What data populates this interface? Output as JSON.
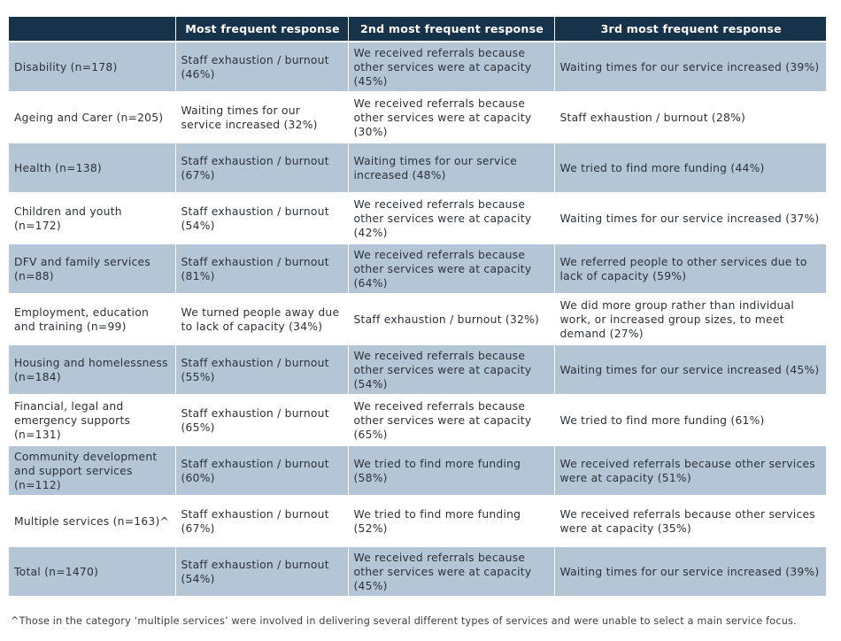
{
  "table": {
    "headers": [
      "",
      "Most frequent response",
      "2nd most frequent response",
      "3rd most frequent response"
    ],
    "rows": [
      [
        "Disability (n=178)",
        "Staff exhaustion / burnout (46%)",
        "We received referrals because other services were at capacity (45%)",
        "Waiting times for our service increased (39%)"
      ],
      [
        "Ageing and Carer (n=205)",
        "Waiting times for our service increased (32%)",
        "We received referrals because other services were at capacity (30%)",
        "Staff exhaustion / burnout (28%)"
      ],
      [
        "Health (n=138)",
        "Staff exhaustion / burnout (67%)",
        "Waiting times for our service increased (48%)",
        "We tried to find more funding (44%)"
      ],
      [
        "Children and youth (n=172)",
        "Staff exhaustion / burnout (54%)",
        "We received referrals because other services were at capacity (42%)",
        "Waiting times for our service increased (37%)"
      ],
      [
        "DFV and family services (n=88)",
        "Staff exhaustion / burnout (81%)",
        "We received referrals because other services were at capacity (64%)",
        "We referred people to other services due to lack of capacity (59%)"
      ],
      [
        "Employment, education and training (n=99)",
        "We turned people away due to lack of capacity (34%)",
        "Staff exhaustion / burnout (32%)",
        "We did more group rather than individual work, or increased group sizes, to meet demand (27%)"
      ],
      [
        "Housing and homelessness (n=184)",
        "Staff exhaustion / burnout (55%)",
        "We received referrals because other services were at capacity (54%)",
        "Waiting times for our service increased (45%)"
      ],
      [
        "Financial, legal and emergency supports (n=131)",
        "Staff exhaustion / burnout (65%)",
        "We received referrals because other services were at capacity (65%)",
        "We tried to find more funding (61%)"
      ],
      [
        "Community development and support services (n=112)",
        "Staff exhaustion / burnout (60%)",
        "We tried to find more funding (58%)",
        "We received referrals because other services were at capacity (51%)"
      ],
      [
        "Multiple services (n=163)^",
        "Staff exhaustion / burnout (67%)",
        "We tried to find more funding (52%)",
        "We received referrals because other services were at capacity (35%)"
      ],
      [
        "Total (n=1470)",
        "Staff exhaustion / burnout (54%)",
        "We received referrals because other services were at capacity (45%)",
        "Waiting times for our service increased (39%)"
      ]
    ]
  },
  "footnote": "^Those in the category ‘multiple services’ were involved in delivering several different types of services and were unable to select a main service focus.",
  "colors": {
    "header_bg": "#17324b",
    "header_text": "#ffffff",
    "shaded_row": "#b4c6d6",
    "plain_row": "#ffffff"
  }
}
